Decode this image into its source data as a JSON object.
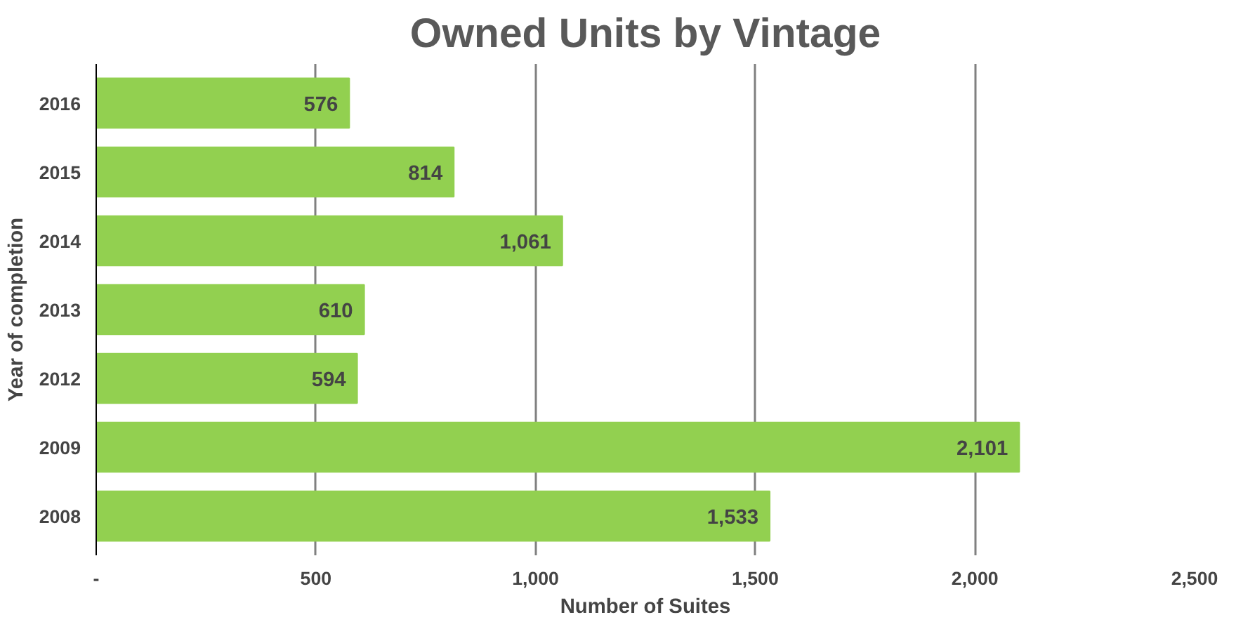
{
  "chart_data": {
    "type": "bar",
    "orientation": "horizontal",
    "title": "Owned Units by Vintage",
    "xlabel": "Number of Suites",
    "ylabel": "Year of completion",
    "categories": [
      "2016",
      "2015",
      "2014",
      "2013",
      "2012",
      "2009",
      "2008"
    ],
    "values": [
      576,
      814,
      1061,
      610,
      594,
      2101,
      1533
    ],
    "value_labels": [
      "576",
      "814",
      "1,061",
      "610",
      "594",
      "2,101",
      "1,533"
    ],
    "color": "#92d050",
    "xlim": [
      0,
      2500
    ],
    "xticks": [
      {
        "value": 0,
        "label": "-"
      },
      500,
      {
        "value": 1000,
        "label": "1,000"
      },
      {
        "value": 1500,
        "label": "1,500"
      },
      {
        "value": 2000,
        "label": "2,000"
      },
      {
        "value": 2500,
        "label": "2,500"
      }
    ],
    "grid": "x"
  }
}
